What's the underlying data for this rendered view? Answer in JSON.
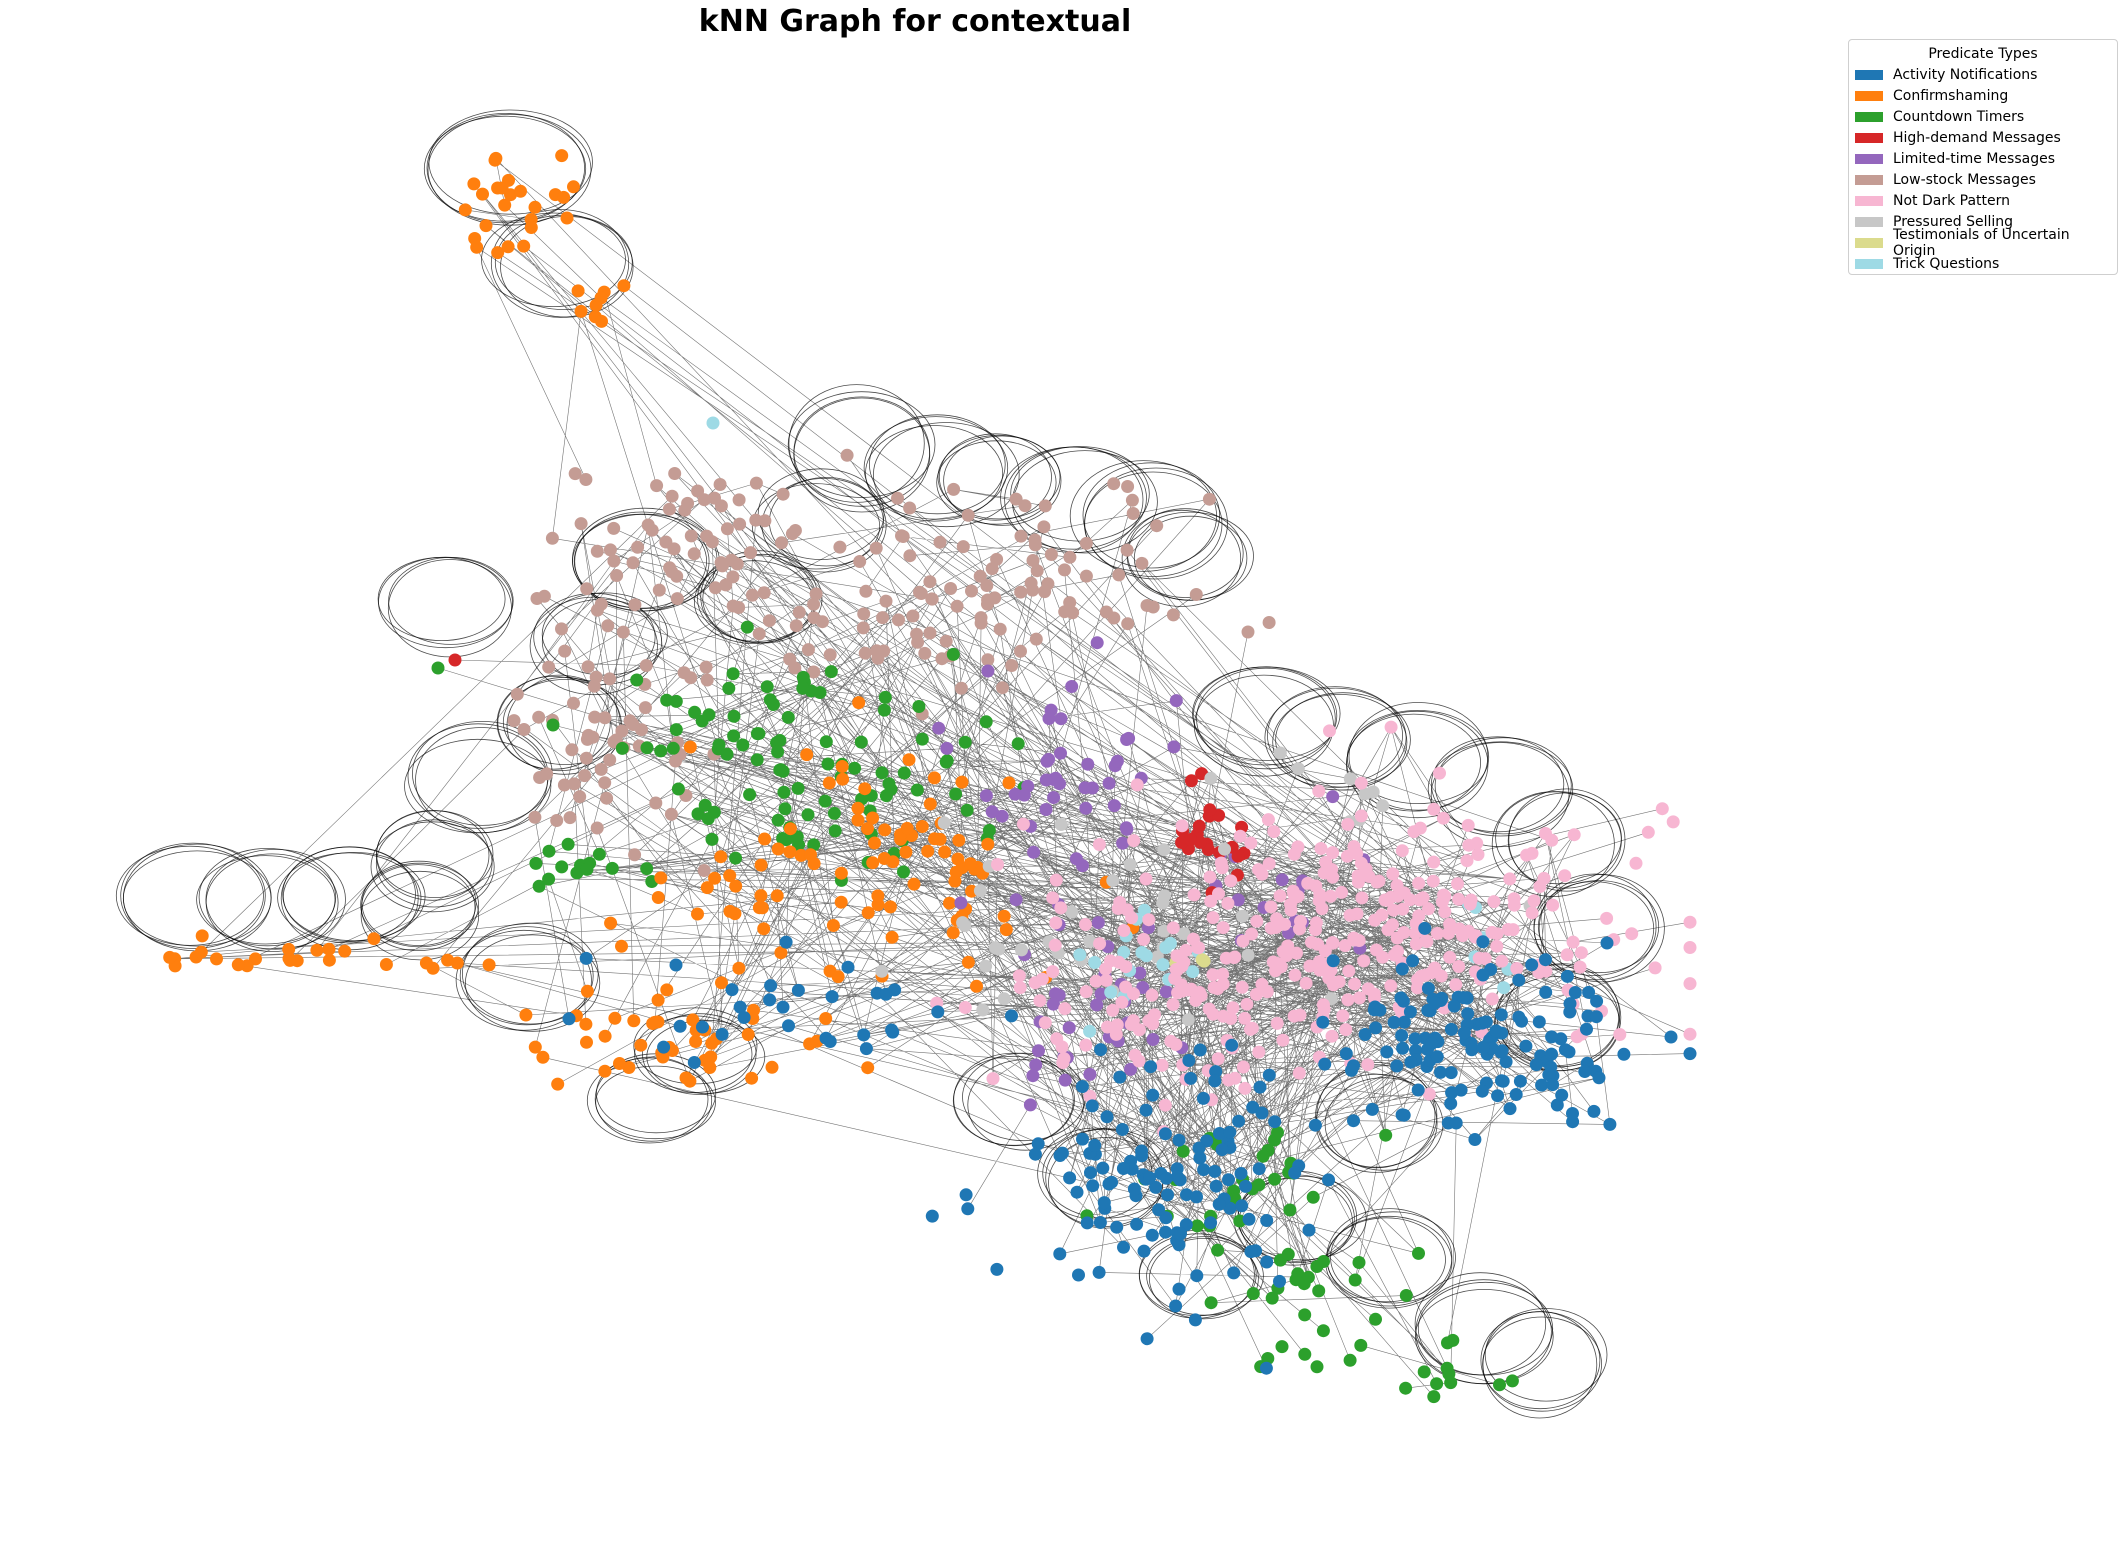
{
  "figure": {
    "title": "kNN Graph for contextual"
  },
  "legend": {
    "title": "Predicate Types",
    "items": [
      {
        "label": "Activity Notifications",
        "color": "#1f77b4",
        "key": "activity"
      },
      {
        "label": "Confirmshaming",
        "color": "#ff7f0e",
        "key": "confirm"
      },
      {
        "label": "Countdown Timers",
        "color": "#2ca02c",
        "key": "countdown"
      },
      {
        "label": "High-demand Messages",
        "color": "#d62728",
        "key": "highdemand"
      },
      {
        "label": "Limited-time Messages",
        "color": "#9467bd",
        "key": "limited"
      },
      {
        "label": "Low-stock Messages",
        "color": "#c49c94",
        "key": "lowstock"
      },
      {
        "label": "Not Dark Pattern",
        "color": "#f7b6d2",
        "key": "notdark"
      },
      {
        "label": "Pressured Selling",
        "color": "#c7c7c7",
        "key": "pressured"
      },
      {
        "label": "Testimonials of Uncertain Origin",
        "color": "#dbdb8d",
        "key": "testimonials"
      },
      {
        "label": "Trick Questions",
        "color": "#9edae5",
        "key": "trick"
      }
    ]
  },
  "graph": {
    "edge_color": "#000000",
    "node_color_by_type": true
  }
}
